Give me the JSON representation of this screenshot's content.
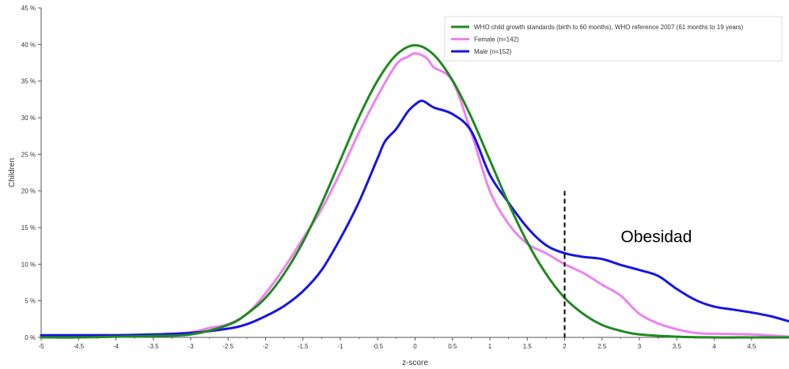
{
  "chart_data": {
    "type": "line",
    "xlabel": "z-score",
    "ylabel": "Children",
    "xlim": [
      -5,
      5
    ],
    "ylim": [
      0,
      45
    ],
    "x_ticks": [
      "-5",
      "-4.5",
      "-4",
      "-3.5",
      "-3",
      "-2.5",
      "-2",
      "-1.5",
      "-1",
      "-0.5",
      "0",
      "0.5",
      "1",
      "1.5",
      "2",
      "2.5",
      "3",
      "3.5",
      "4",
      "4.5"
    ],
    "x_tick_values": [
      -5,
      -4.5,
      -4,
      -3.5,
      -3,
      -2.5,
      -2,
      -1.5,
      -1,
      -0.5,
      0,
      0.5,
      1,
      1.5,
      2,
      2.5,
      3,
      3.5,
      4,
      4.5
    ],
    "y_ticks": [
      "0 %",
      "5 %",
      "10 %",
      "15 %",
      "20 %",
      "25 %",
      "30 %",
      "35 %",
      "40 %",
      "45 %"
    ],
    "y_tick_values": [
      0,
      5,
      10,
      15,
      20,
      25,
      30,
      35,
      40,
      45
    ],
    "grid": false,
    "legend_position": "top-right",
    "series": [
      {
        "name": "WHO child growth standards (birth to 60 months), WHO reference 2007 (61 months to 19 years)",
        "color": "#1e8a1e",
        "x": [
          -5,
          -4.5,
          -4,
          -3.5,
          -3,
          -2.5,
          -2.25,
          -2,
          -1.75,
          -1.5,
          -1.25,
          -1,
          -0.75,
          -0.5,
          -0.25,
          0,
          0.25,
          0.5,
          0.75,
          1,
          1.25,
          1.5,
          1.75,
          2,
          2.25,
          2.5,
          2.75,
          3,
          3.5,
          4,
          4.5,
          5
        ],
        "y": [
          0.0,
          0.0,
          0.1,
          0.2,
          0.4,
          1.7,
          3.2,
          5.4,
          8.7,
          13.0,
          18.3,
          24.2,
          30.1,
          35.1,
          38.6,
          39.9,
          38.6,
          35.1,
          30.1,
          24.2,
          18.3,
          13.0,
          8.7,
          5.4,
          3.2,
          1.7,
          0.9,
          0.4,
          0.1,
          0.0,
          0.0,
          0.0
        ]
      },
      {
        "name": "Female (n=142)",
        "color": "#ee82ee",
        "x": [
          -5,
          -4.5,
          -4,
          -3.5,
          -3,
          -2.75,
          -2.5,
          -2.25,
          -2,
          -1.75,
          -1.5,
          -1.25,
          -1,
          -0.75,
          -0.5,
          -0.25,
          -0.1,
          0,
          0.15,
          0.25,
          0.5,
          0.75,
          1,
          1.25,
          1.5,
          1.75,
          2,
          2.25,
          2.5,
          2.75,
          3,
          3.25,
          3.5,
          3.75,
          4,
          4.5,
          5
        ],
        "y": [
          0.2,
          0.3,
          0.3,
          0.4,
          0.7,
          1.3,
          1.8,
          3.2,
          6.0,
          9.5,
          13.5,
          17.5,
          22.5,
          28.0,
          33.0,
          37.3,
          38.3,
          38.8,
          38.2,
          36.9,
          35.0,
          28.0,
          20.0,
          15.5,
          12.8,
          11.5,
          10.0,
          8.8,
          7.2,
          5.7,
          3.2,
          1.9,
          1.1,
          0.6,
          0.5,
          0.4,
          0.1
        ]
      },
      {
        "name": "Male (n=152)",
        "color": "#1515e6",
        "x": [
          -5,
          -4.5,
          -4,
          -3.5,
          -3,
          -2.5,
          -2.25,
          -2,
          -1.75,
          -1.5,
          -1.25,
          -1,
          -0.75,
          -0.5,
          -0.4,
          -0.25,
          -0.1,
          0,
          0.1,
          0.25,
          0.5,
          0.75,
          1,
          1.25,
          1.5,
          1.75,
          2,
          2.25,
          2.5,
          2.75,
          3,
          3.25,
          3.5,
          3.75,
          4,
          4.25,
          4.5,
          4.75,
          5
        ],
        "y": [
          0.3,
          0.3,
          0.3,
          0.4,
          0.6,
          1.2,
          1.8,
          2.9,
          4.3,
          6.3,
          9.2,
          13.5,
          18.5,
          24.5,
          26.8,
          28.5,
          30.8,
          31.8,
          32.3,
          31.4,
          30.5,
          28.2,
          22.2,
          18.4,
          15.0,
          12.6,
          11.5,
          11.0,
          10.7,
          9.9,
          9.2,
          8.4,
          6.6,
          5.1,
          4.2,
          3.8,
          3.4,
          2.9,
          2.2
        ]
      }
    ],
    "annotations": [
      {
        "type": "vline",
        "x": 2,
        "y_top": 20.0,
        "style": "dashed",
        "color": "#000000"
      },
      {
        "type": "text",
        "text": "Obesidad",
        "x": 2.75,
        "y": 13.0
      }
    ]
  }
}
